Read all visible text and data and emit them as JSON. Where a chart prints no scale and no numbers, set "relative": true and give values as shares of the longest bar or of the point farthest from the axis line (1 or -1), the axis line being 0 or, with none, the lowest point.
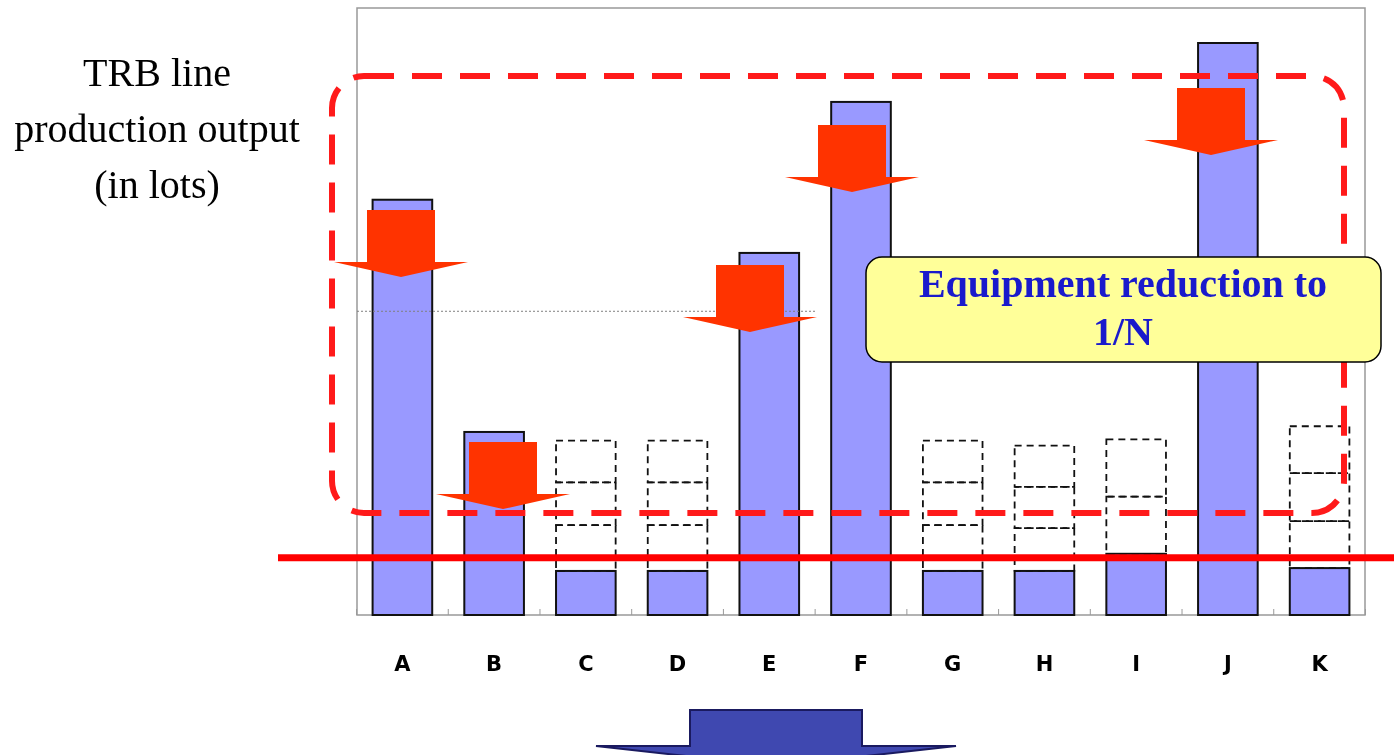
{
  "chart_data": {
    "type": "bar",
    "relative": true,
    "stacked": true,
    "ylabel": "TRB line production output (in lots)",
    "categories": [
      "A",
      "B",
      "C",
      "D",
      "E",
      "F",
      "G",
      "H",
      "I",
      "J",
      "K"
    ],
    "series": [
      {
        "color": "#9999ff",
        "values": [
          0.726,
          0.32,
          0.077,
          0.077,
          0.633,
          0.897,
          0.077,
          0.077,
          0.107,
          1,
          0.082
        ]
      },
      {
        "color": "#111111",
        "line_style": "dashed",
        "values": [
          null,
          null,
          0.08,
          0.08,
          null,
          null,
          0.08,
          0.075,
          0.1,
          null,
          0.082
        ]
      },
      {
        "color": "#111111",
        "line_style": "dashed",
        "values": [
          null,
          null,
          0.075,
          0.075,
          null,
          null,
          0.075,
          0.072,
          0.1,
          null,
          0.084
        ]
      },
      {
        "color": "#111111",
        "line_style": "dashed",
        "values": [
          null,
          null,
          0.073,
          0.073,
          null,
          null,
          0.073,
          0.072,
          null,
          null,
          0.082
        ]
      }
    ],
    "ref_lines": [
      {
        "axis": "y",
        "value": 0.1,
        "color": "#ff0000",
        "line_style": "solid"
      },
      {
        "axis": "y",
        "value": 0.531,
        "color": "#808080",
        "line_style": "dotted"
      }
    ],
    "annotations": [
      "Equipment reduction to 1/N"
    ]
  }
}
